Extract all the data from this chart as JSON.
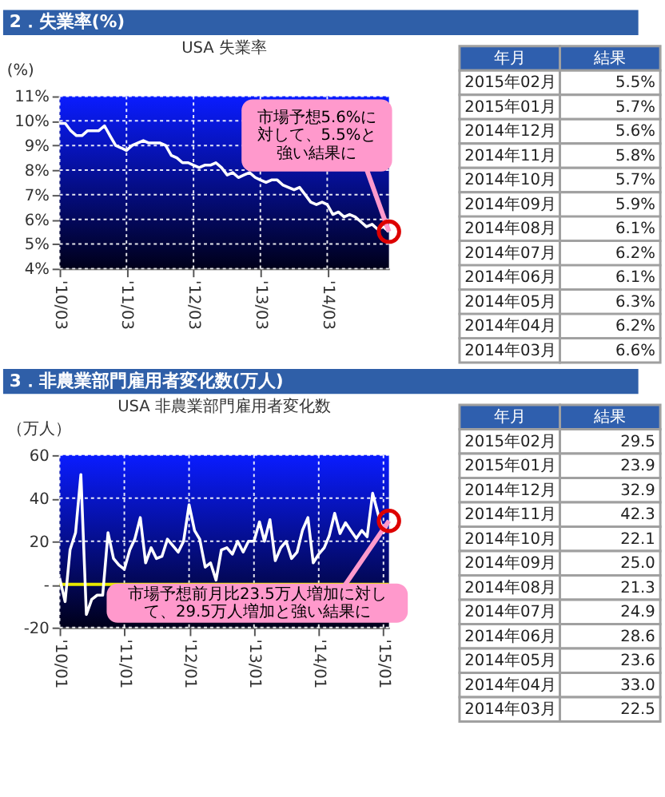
{
  "chart_data": [
    {
      "type": "line",
      "title": "USA 失業率",
      "subtitle": "2．失業率(%)",
      "ylabel": "(%)",
      "x": [
        "2010-03",
        "2010-04",
        "2010-05",
        "2010-06",
        "2010-07",
        "2010-08",
        "2010-09",
        "2010-10",
        "2010-11",
        "2010-12",
        "2011-01",
        "2011-02",
        "2011-03",
        "2011-04",
        "2011-05",
        "2011-06",
        "2011-07",
        "2011-08",
        "2011-09",
        "2011-10",
        "2011-11",
        "2011-12",
        "2012-01",
        "2012-02",
        "2012-03",
        "2012-04",
        "2012-05",
        "2012-06",
        "2012-07",
        "2012-08",
        "2012-09",
        "2012-10",
        "2012-11",
        "2012-12",
        "2013-01",
        "2013-02",
        "2013-03",
        "2013-04",
        "2013-05",
        "2013-06",
        "2013-07",
        "2013-08",
        "2013-09",
        "2013-10",
        "2013-11",
        "2013-12",
        "2014-01",
        "2014-02",
        "2014-03",
        "2014-04",
        "2014-05",
        "2014-06",
        "2014-07",
        "2014-08",
        "2014-09",
        "2014-10",
        "2014-11",
        "2014-12",
        "2015-01",
        "2015-02"
      ],
      "series": [
        {
          "color": "#ffffff",
          "values": [
            9.9,
            9.9,
            9.6,
            9.4,
            9.4,
            9.6,
            9.6,
            9.6,
            9.8,
            9.4,
            9.0,
            8.9,
            8.8,
            9.0,
            9.1,
            9.2,
            9.1,
            9.1,
            9.1,
            9.0,
            8.6,
            8.5,
            8.3,
            8.3,
            8.2,
            8.1,
            8.2,
            8.2,
            8.3,
            8.1,
            7.8,
            7.9,
            7.7,
            7.8,
            7.9,
            7.7,
            7.6,
            7.5,
            7.6,
            7.6,
            7.4,
            7.3,
            7.2,
            7.3,
            7.0,
            6.7,
            6.6,
            6.7,
            6.6,
            6.2,
            6.3,
            6.1,
            6.2,
            6.1,
            5.9,
            5.7,
            5.8,
            5.6,
            5.7,
            5.5
          ]
        }
      ],
      "xlim": [
        "2010-03",
        "2015-02"
      ],
      "xticks": [
        {
          "value": "2010-03",
          "label": "'10/03"
        },
        {
          "value": "2011-03",
          "label": "'11/03"
        },
        {
          "value": "2012-03",
          "label": "'12/03"
        },
        {
          "value": "2013-03",
          "label": "'13/03"
        },
        {
          "value": "2014-03",
          "label": "'14/03"
        }
      ],
      "ylim": [
        4,
        11
      ],
      "yticks": [
        {
          "value": 4,
          "label": "4%"
        },
        {
          "value": 5,
          "label": "5%"
        },
        {
          "value": 6,
          "label": "6%"
        },
        {
          "value": 7,
          "label": "7%"
        },
        {
          "value": 8,
          "label": "8%"
        },
        {
          "value": 9,
          "label": "9%"
        },
        {
          "value": 10,
          "label": "10%"
        },
        {
          "value": 11,
          "label": "11%"
        }
      ],
      "grid": true,
      "annotations": [
        {
          "text": "市場予想5.6%に対して、5.5%と強い結果に",
          "x": "2015-02",
          "y": 5.5
        }
      ]
    },
    {
      "type": "other",
      "annotations": [
        "年月",
        "結果",
        "2015年02月",
        "5.5%",
        "2015年01月",
        "5.7%",
        "2014年12月",
        "5.6%",
        "2014年11月",
        "5.8%",
        "2014年10月",
        "5.7%",
        "2014年09月",
        "5.9%",
        "2014年08月",
        "6.1%",
        "2014年07月",
        "6.2%",
        "2014年06月",
        "6.1%",
        "2014年05月",
        "6.3%",
        "2014年04月",
        "6.2%",
        "2014年03月",
        "6.6%"
      ]
    },
    {
      "type": "line",
      "title": "USA 非農業部門雇用者変化数",
      "subtitle": "3．非農業部門雇用者変化数(万人)",
      "ylabel": "（万人）",
      "x": [
        "2010-01",
        "2010-02",
        "2010-03",
        "2010-04",
        "2010-05",
        "2010-06",
        "2010-07",
        "2010-08",
        "2010-09",
        "2010-10",
        "2010-11",
        "2010-12",
        "2011-01",
        "2011-02",
        "2011-03",
        "2011-04",
        "2011-05",
        "2011-06",
        "2011-07",
        "2011-08",
        "2011-09",
        "2011-10",
        "2011-11",
        "2011-12",
        "2012-01",
        "2012-02",
        "2012-03",
        "2012-04",
        "2012-05",
        "2012-06",
        "2012-07",
        "2012-08",
        "2012-09",
        "2012-10",
        "2012-11",
        "2012-12",
        "2013-01",
        "2013-02",
        "2013-03",
        "2013-04",
        "2013-05",
        "2013-06",
        "2013-07",
        "2013-08",
        "2013-09",
        "2013-10",
        "2013-11",
        "2013-12",
        "2014-01",
        "2014-02",
        "2014-03",
        "2014-04",
        "2014-05",
        "2014-06",
        "2014-07",
        "2014-08",
        "2014-09",
        "2014-10",
        "2014-11",
        "2014-12",
        "2015-01",
        "2015-02"
      ],
      "series": [
        {
          "color": "#ffffff",
          "values": [
            3,
            -8,
            16,
            24,
            51,
            -14,
            -7,
            -5,
            -5,
            24,
            12,
            9,
            7,
            16,
            21,
            31,
            10,
            17,
            12,
            13,
            21,
            18,
            15,
            20,
            37,
            25,
            21,
            8,
            10,
            2,
            16,
            17,
            14,
            20,
            15,
            20,
            20,
            29,
            20,
            30,
            11,
            17,
            20,
            12,
            15,
            25,
            31,
            10,
            14,
            17,
            22.5,
            33.0,
            23.6,
            28.6,
            24.9,
            21.3,
            25.0,
            22.1,
            42.3,
            32.9,
            23.9,
            29.5
          ]
        }
      ],
      "xlim": [
        "2010-01",
        "2015-02"
      ],
      "xticks": [
        {
          "value": "2010-01",
          "label": "'10/01"
        },
        {
          "value": "2011-01",
          "label": "'11/01"
        },
        {
          "value": "2012-01",
          "label": "'12/01"
        },
        {
          "value": "2013-01",
          "label": "'13/01"
        },
        {
          "value": "2014-01",
          "label": "'14/01"
        },
        {
          "value": "2015-01",
          "label": "'15/01"
        }
      ],
      "ylim": [
        -20,
        60
      ],
      "yticks": [
        -20,
        {
          "value": 0,
          "label": "-"
        },
        20,
        40,
        60
      ],
      "grid": true,
      "ref_lines": [
        {
          "axis": "y",
          "value": 0,
          "color": "#e8e800"
        }
      ],
      "annotations": [
        {
          "text": "市場予想前月比23.5万人増加に対して、29.5万人増加と強い結果に",
          "x": "2015-02",
          "y": 29.5
        }
      ]
    },
    {
      "type": "other",
      "annotations": [
        "年月",
        "結果",
        "2015年02月",
        "29.5",
        "2015年01月",
        "23.9",
        "2014年12月",
        "32.9",
        "2014年11月",
        "42.3",
        "2014年10月",
        "22.1",
        "2014年09月",
        "25.0",
        "2014年08月",
        "21.3",
        "2014年07月",
        "24.9",
        "2014年06月",
        "28.6",
        "2014年05月",
        "23.6",
        "2014年04月",
        "33.0",
        "2014年03月",
        "22.5"
      ]
    }
  ]
}
